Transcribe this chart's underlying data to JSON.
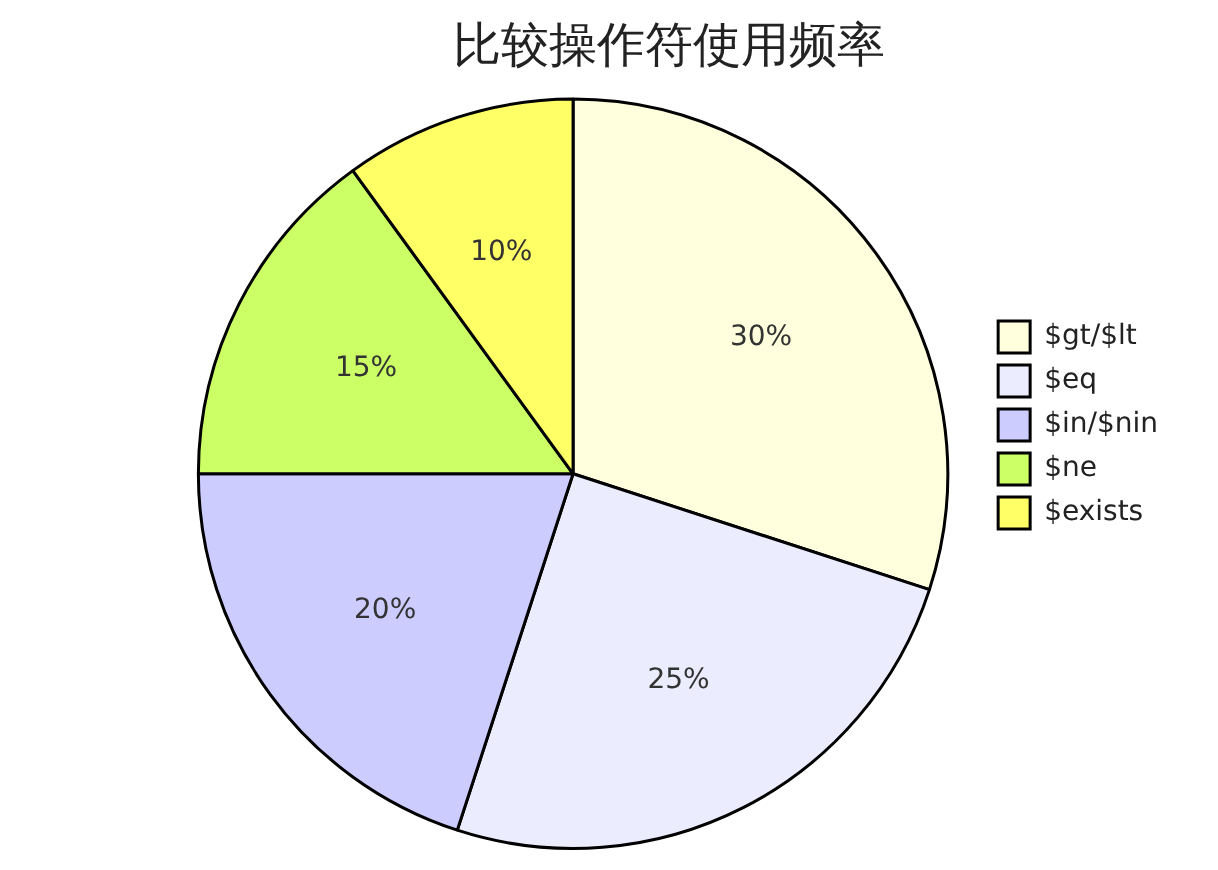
{
  "chart_data": {
    "type": "pie",
    "title": "比较操作符使用频率",
    "categories": [
      "$gt/$lt",
      "$eq",
      "$in/$nin",
      "$ne",
      "$exists"
    ],
    "values": [
      30,
      25,
      20,
      15,
      10
    ],
    "colors": [
      "#ffffde",
      "#ececff",
      "#ccccff",
      "#ccff66",
      "#ffff66"
    ],
    "value_labels": [
      "30%",
      "25%",
      "20%",
      "15%",
      "10%"
    ],
    "legend": "right"
  }
}
